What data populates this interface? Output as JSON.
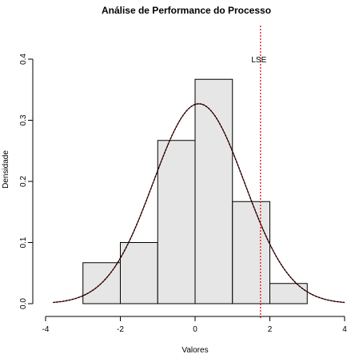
{
  "chart_data": {
    "type": "bar",
    "title": "Análise de Performance do Processo",
    "xlabel": "Valores",
    "ylabel": "Densidade",
    "xlim": [
      -4,
      4
    ],
    "ylim": [
      0,
      0.4
    ],
    "x_ticks": [
      "-4",
      "-2",
      "0",
      "2",
      "4"
    ],
    "y_ticks": [
      "0.0",
      "0.1",
      "0.2",
      "0.3",
      "0.4"
    ],
    "histogram": {
      "bin_edges": [
        -3,
        -2,
        -1,
        0,
        1,
        2,
        3
      ],
      "densities": [
        0.067,
        0.1,
        0.267,
        0.367,
        0.167,
        0.033
      ],
      "fill": "#e6e6e6",
      "edge": "#000000"
    },
    "density_curve": {
      "mean": 0.1,
      "sd": 1.22,
      "x_range": [
        -3.8,
        4.0
      ],
      "color": "#000000",
      "overlay_color": "#cc0000"
    },
    "spec_limit": {
      "label": "LSE",
      "x": 1.75,
      "color": "#e00000",
      "style": "dotted"
    },
    "grid": false,
    "legend": "none"
  }
}
